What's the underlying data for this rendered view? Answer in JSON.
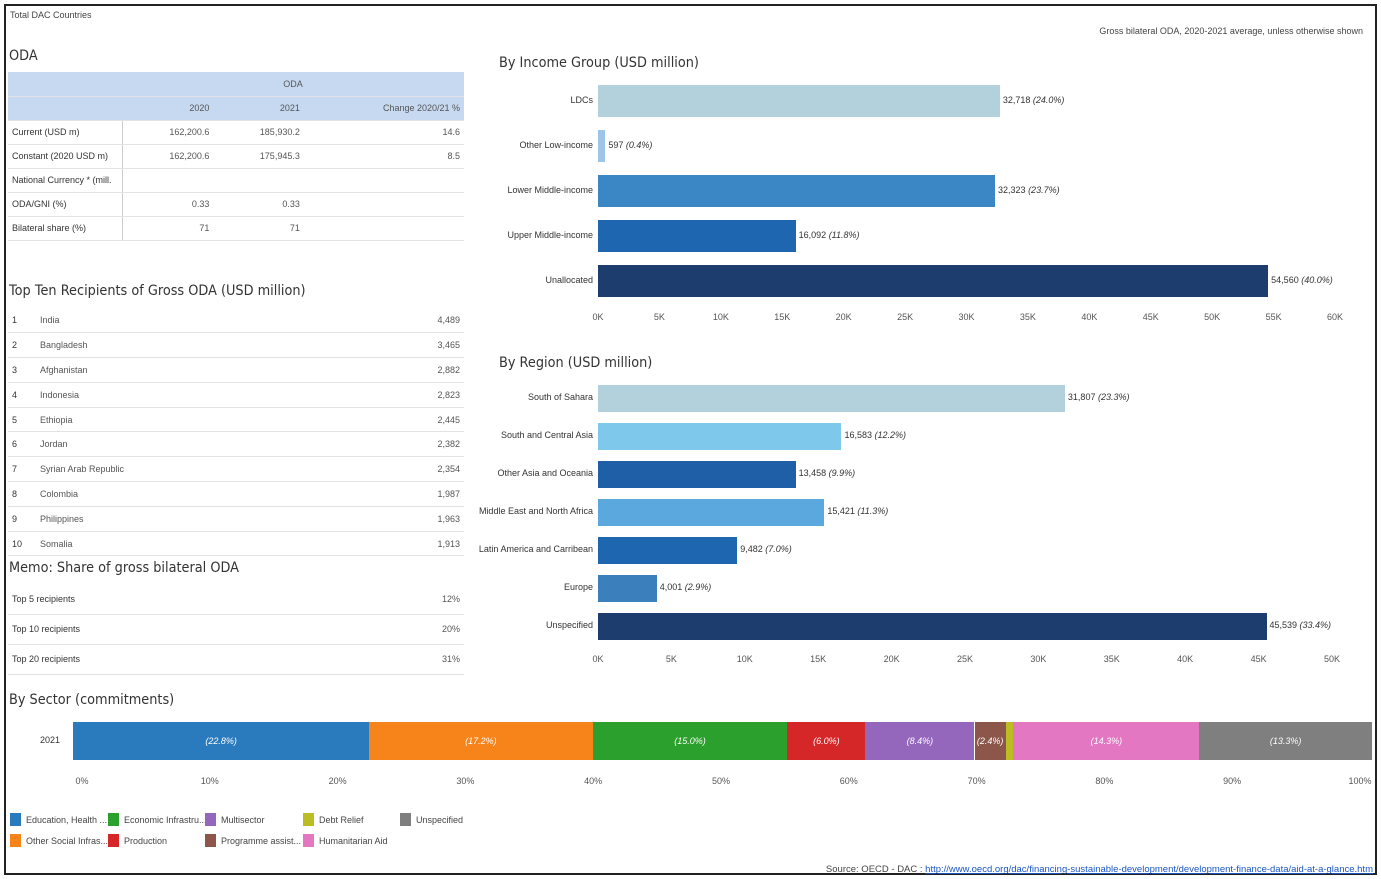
{
  "header": {
    "scope": "Total DAC Countries",
    "note": "Gross bilateral ODA, 2020-2021 average, unless otherwise shown"
  },
  "oda": {
    "title": "ODA",
    "group_header": "ODA",
    "columns": [
      "2020",
      "2021",
      "Change 2020/21 %"
    ],
    "rows": [
      {
        "label": "Current (USD m)",
        "v2020": "162,200.6",
        "v2021": "185,930.2",
        "change": "14.6"
      },
      {
        "label": "Constant (2020 USD m)",
        "v2020": "162,200.6",
        "v2021": "175,945.3",
        "change": "8.5"
      },
      {
        "label": "National Currency * (mill.",
        "v2020": "",
        "v2021": "",
        "change": ""
      },
      {
        "label": "ODA/GNI (%)",
        "v2020": "0.33",
        "v2021": "0.33",
        "change": ""
      },
      {
        "label": "Bilateral share (%)",
        "v2020": "71",
        "v2021": "71",
        "change": ""
      }
    ]
  },
  "top_ten": {
    "title": "Top Ten Recipients of Gross ODA (USD million)",
    "rows": [
      {
        "rank": "1",
        "name": "India",
        "value": "4,489"
      },
      {
        "rank": "2",
        "name": "Bangladesh",
        "value": "3,465"
      },
      {
        "rank": "3",
        "name": "Afghanistan",
        "value": "2,882"
      },
      {
        "rank": "4",
        "name": "Indonesia",
        "value": "2,823"
      },
      {
        "rank": "5",
        "name": "Ethiopia",
        "value": "2,445"
      },
      {
        "rank": "6",
        "name": "Jordan",
        "value": "2,382"
      },
      {
        "rank": "7",
        "name": "Syrian Arab Republic",
        "value": "2,354"
      },
      {
        "rank": "8",
        "name": "Colombia",
        "value": "1,987"
      },
      {
        "rank": "9",
        "name": "Philippines",
        "value": "1,963"
      },
      {
        "rank": "10",
        "name": "Somalia",
        "value": "1,913"
      }
    ]
  },
  "memo": {
    "title": "Memo: Share of gross bilateral ODA",
    "rows": [
      {
        "label": "Top 5 recipients",
        "value": "12%"
      },
      {
        "label": "Top 10 recipients",
        "value": "20%"
      },
      {
        "label": "Top 20 recipients",
        "value": "31%"
      }
    ]
  },
  "source": {
    "prefix": "Source: OECD - DAC : ",
    "link": "http://www.oecd.org/dac/financing-sustainable-development/development-finance-data/aid-at-a-glance.htm"
  },
  "chart_data": [
    {
      "type": "bar",
      "orientation": "horizontal",
      "title": "By Income Group (USD million)",
      "categories": [
        "LDCs",
        "Other Low-income",
        "Lower Middle-income",
        "Upper Middle-income",
        "Unallocated"
      ],
      "values": [
        32718,
        597,
        32323,
        16092,
        54560
      ],
      "value_labels": [
        "32,718 (24.0%)",
        "597 (0.4%)",
        "32,323 (23.7%)",
        "16,092 (11.8%)",
        "54,560 (40.0%)"
      ],
      "colors": [
        "#b3d1dd",
        "#9ec4e8",
        "#3b86c4",
        "#1f66b0",
        "#1c3d6e"
      ],
      "xlim": [
        0,
        60000
      ],
      "ticks": [
        "0K",
        "5K",
        "10K",
        "15K",
        "20K",
        "25K",
        "30K",
        "35K",
        "40K",
        "45K",
        "50K",
        "55K",
        "60K"
      ]
    },
    {
      "type": "bar",
      "orientation": "horizontal",
      "title": "By Region (USD million)",
      "categories": [
        "South of Sahara",
        "South and Central Asia",
        "Other Asia and Oceania",
        "Middle East and North Africa",
        "Latin America and Carribean",
        "Europe",
        "Unspecified"
      ],
      "values": [
        31807,
        16583,
        13458,
        15421,
        9482,
        4001,
        45539
      ],
      "value_labels": [
        "31,807 (23.3%)",
        "16,583 (12.2%)",
        "13,458 (9.9%)",
        "15,421 (11.3%)",
        "9,482 (7.0%)",
        "4,001 (2.9%)",
        "45,539 (33.4%)"
      ],
      "colors": [
        "#b3d1dd",
        "#7ec8ec",
        "#1f5fa8",
        "#5aa8de",
        "#1f66b0",
        "#3b80bc",
        "#1c3d6e"
      ],
      "xlim": [
        0,
        50000
      ],
      "ticks": [
        "0K",
        "5K",
        "10K",
        "15K",
        "20K",
        "25K",
        "30K",
        "35K",
        "40K",
        "45K",
        "50K"
      ]
    },
    {
      "type": "bar",
      "orientation": "horizontal",
      "stacked": true,
      "title": "By Sector (commitments)",
      "categories": [
        "2021"
      ],
      "series": [
        {
          "name": "Education, Health ...",
          "value": 22.8,
          "label": "(22.8%)",
          "color": "#2a7bbd"
        },
        {
          "name": "Other Social Infras...",
          "value": 17.2,
          "label": "(17.2%)",
          "color": "#f7831b"
        },
        {
          "name": "Economic Infrastru...",
          "value": 15.0,
          "label": "(15.0%)",
          "color": "#2ca02c"
        },
        {
          "name": "Production",
          "value": 6.0,
          "label": "(6.0%)",
          "color": "#d62728"
        },
        {
          "name": "Multisector",
          "value": 8.4,
          "label": "(8.4%)",
          "color": "#9467bd"
        },
        {
          "name": "Programme assist...",
          "value": 2.4,
          "label": "(2.4%)",
          "color": "#8c564b"
        },
        {
          "name": "Debt Relief",
          "value": 0.6,
          "label": "",
          "color": "#bcbd22"
        },
        {
          "name": "Humanitarian Aid",
          "value": 14.3,
          "label": "(14.3%)",
          "color": "#e377c2"
        },
        {
          "name": "Unspecified",
          "value": 13.3,
          "label": "(13.3%)",
          "color": "#7f7f7f"
        }
      ],
      "xlim": [
        0,
        100
      ],
      "ticks": [
        "0%",
        "10%",
        "20%",
        "30%",
        "40%",
        "50%",
        "60%",
        "70%",
        "80%",
        "90%",
        "100%"
      ],
      "legend_order": [
        "Education, Health ...",
        "Other Social Infras...",
        "Economic Infrastru...",
        "Production",
        "Multisector",
        "Programme assist...",
        "Debt Relief",
        "Humanitarian Aid",
        "Unspecified"
      ]
    }
  ]
}
